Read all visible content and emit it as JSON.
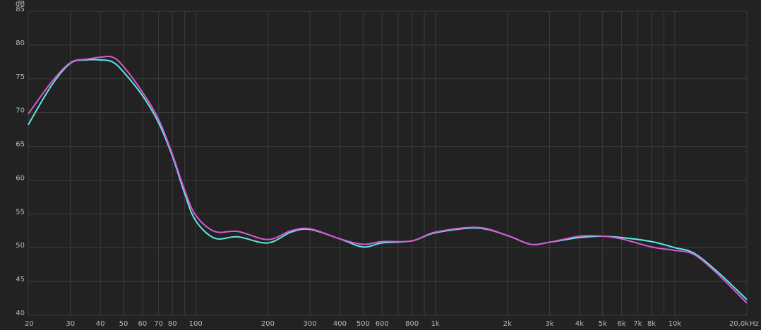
{
  "chart_data": {
    "type": "line",
    "y_label": "dB",
    "x_label": "Hz",
    "xscale": "log",
    "grid": true,
    "x": [
      20,
      25,
      30,
      35,
      40,
      45,
      50,
      60,
      70,
      80,
      90,
      100,
      120,
      150,
      200,
      250,
      300,
      400,
      500,
      600,
      800,
      1000,
      1500,
      2000,
      2500,
      3000,
      4000,
      5000,
      6000,
      8000,
      10000,
      12000,
      15000,
      20000
    ],
    "series": [
      {
        "color": "#5ee8e0",
        "values": [
          68.2,
          74,
          77.3,
          77.8,
          77.8,
          77.5,
          76,
          72.5,
          68.5,
          63.5,
          58,
          54,
          51.4,
          51.6,
          50.7,
          52.3,
          52.7,
          51.3,
          50.1,
          50.7,
          51,
          52.2,
          52.9,
          51.8,
          50.5,
          50.8,
          51.5,
          51.7,
          51.5,
          50.9,
          50,
          49.2,
          46.5,
          42.3
        ]
      },
      {
        "color": "#d957d9",
        "values": [
          69.8,
          74.5,
          77.4,
          77.9,
          78.2,
          78.2,
          76.8,
          73,
          69,
          63.8,
          58.5,
          54.8,
          52.4,
          52.4,
          51.2,
          52.5,
          52.8,
          51.3,
          50.5,
          50.9,
          51,
          52.3,
          53,
          51.8,
          50.5,
          50.8,
          51.7,
          51.7,
          51.3,
          50.1,
          49.6,
          49,
          46.2,
          41.8
        ]
      }
    ],
    "xlim": [
      20,
      20000
    ],
    "xticks": [
      20,
      30,
      40,
      50,
      60,
      70,
      80,
      100,
      200,
      300,
      400,
      500,
      600,
      800,
      {
        "value": 1000,
        "label": "1k"
      },
      {
        "value": 2000,
        "label": "2k"
      },
      {
        "value": 3000,
        "label": "3k"
      },
      {
        "value": 4000,
        "label": "4k"
      },
      {
        "value": 5000,
        "label": "5k"
      },
      {
        "value": 6000,
        "label": "6k"
      },
      {
        "value": 7000,
        "label": "7k"
      },
      {
        "value": 8000,
        "label": "8k"
      },
      {
        "value": 10000,
        "label": "10k"
      },
      {
        "value": 20000,
        "label": "20,0k"
      }
    ],
    "minor_xticks": [
      90,
      700,
      900,
      9000
    ],
    "ylim": [
      40,
      85
    ],
    "yticks": [
      40,
      45,
      50,
      55,
      60,
      65,
      70,
      75,
      80,
      85
    ]
  }
}
